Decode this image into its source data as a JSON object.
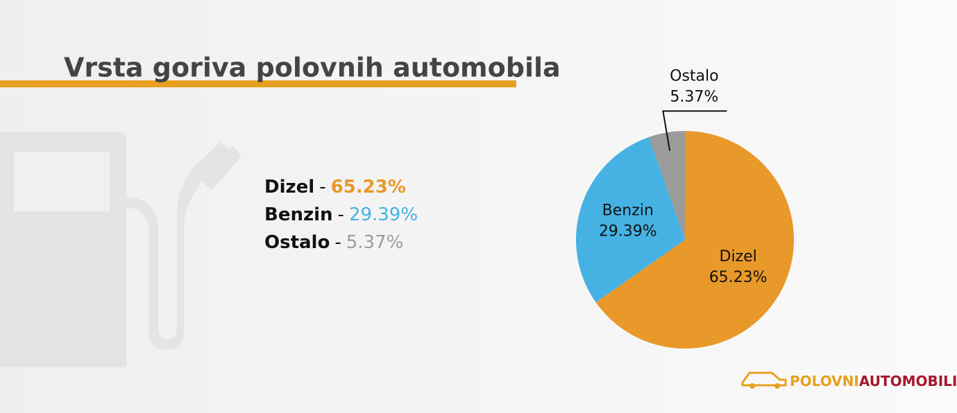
{
  "chart_data": {
    "type": "pie",
    "title": "Vrsta goriva polovnih automobila",
    "categories": [
      "Dizel",
      "Benzin",
      "Ostalo"
    ],
    "values": [
      65.23,
      29.39,
      5.37
    ],
    "value_labels": [
      "65.23%",
      "29.39%",
      "5.37%"
    ],
    "colors": [
      "#e8992a",
      "#45b2e3",
      "#9b9b9b"
    ],
    "legend_separator": "-",
    "logo_text": [
      "POLOVNI",
      "AUTOMOBILI"
    ]
  }
}
